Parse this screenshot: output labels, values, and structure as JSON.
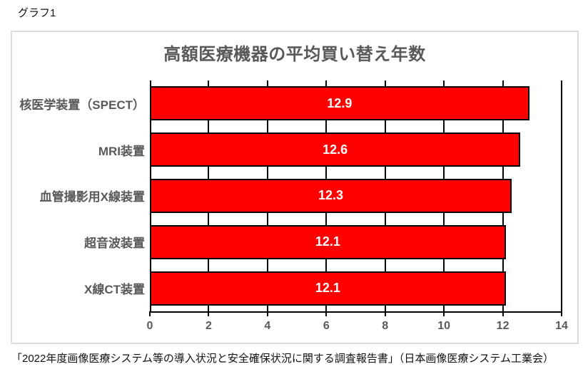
{
  "page": {
    "graph_label": "グラフ1",
    "source_caption": "「2022年度画像医療システム等の導入状況と安全確保状況に関する調査報告書」（日本画像医療システム工業会）"
  },
  "chart_data": {
    "type": "bar",
    "orientation": "horizontal",
    "title": "高額医療機器の平均買い替え年数",
    "categories": [
      "核医学装置（SPECT）",
      "MRI装置",
      "血管撮影用X線装置",
      "超音波装置",
      "X線CT装置"
    ],
    "values": [
      12.9,
      12.6,
      12.3,
      12.1,
      12.1
    ],
    "data_labels": [
      "12.9",
      "12.6",
      "12.3",
      "12.1",
      "12.1"
    ],
    "xlabel": "",
    "ylabel": "",
    "xlim": [
      0,
      14
    ],
    "x_ticks": [
      0,
      2,
      4,
      6,
      8,
      10,
      12,
      14
    ],
    "grid": true,
    "legend": "none",
    "colors": {
      "bar_fill": "#ff0000",
      "bar_border": "#000000",
      "data_label": "#ffffff",
      "title_text": "#595959",
      "axis_text": "#595959",
      "gridline": "#000000",
      "container_border": "#dcdcdc"
    }
  }
}
